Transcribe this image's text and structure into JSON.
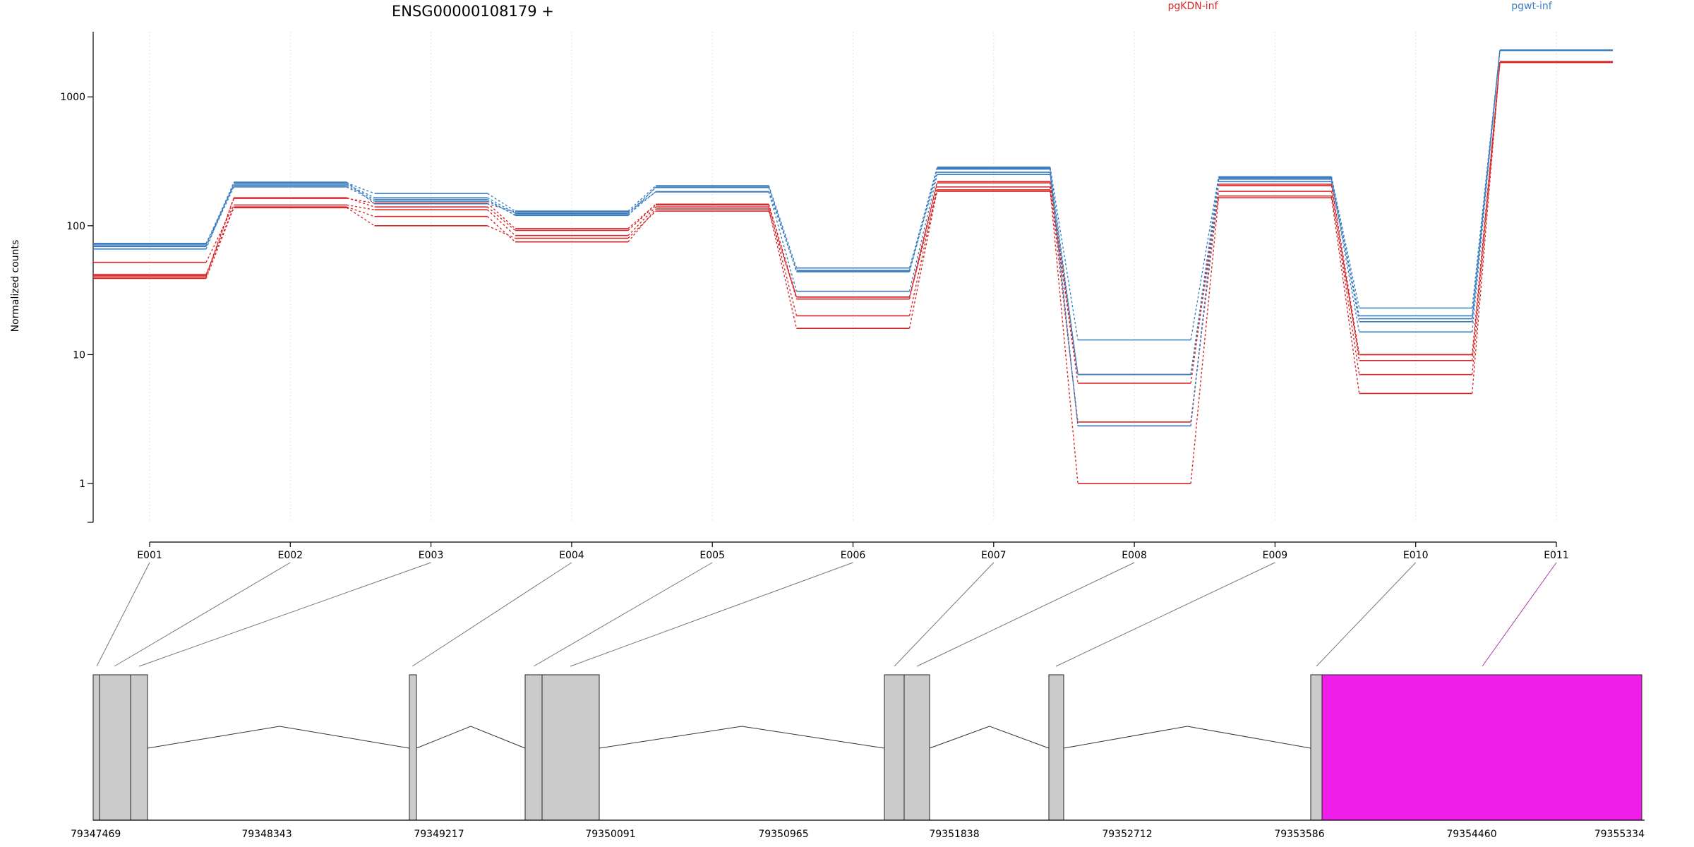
{
  "chart_data": {
    "type": "line",
    "title": "ENSG00000108179 +",
    "ylabel": "Normalized counts",
    "xlabel": "",
    "y_scale": "log",
    "ylim": [
      0.5,
      3200
    ],
    "y_ticks": [
      1,
      10,
      100,
      1000
    ],
    "y_tick_labels": [
      "1",
      "10",
      "100",
      "1000"
    ],
    "grid": "vertical dotted at each exon",
    "legend_placement": "top",
    "categories": [
      "E001",
      "E002",
      "E003",
      "E004",
      "E005",
      "E006",
      "E007",
      "E008",
      "E009",
      "E010",
      "E011"
    ],
    "series": [
      {
        "name": "pgKDN-inf",
        "color": "#d62728",
        "replicates": [
          [
            40,
            163,
            150,
            95,
            147,
            28,
            220,
            7,
            210,
            10,
            1850
          ],
          [
            41,
            165,
            140,
            92,
            145,
            27,
            215,
            6,
            205,
            9,
            1870
          ],
          [
            52,
            145,
            133,
            84,
            140,
            20,
            200,
            3,
            185,
            7,
            1860
          ],
          [
            42,
            140,
            118,
            75,
            135,
            16,
            190,
            1,
            165,
            5,
            1880
          ],
          [
            39,
            138,
            100,
            80,
            130,
            28,
            185,
            7,
            170,
            10,
            1850
          ]
        ]
      },
      {
        "name": "pgwt-inf",
        "color": "#3a7ebf",
        "replicates": [
          [
            72,
            215,
            178,
            130,
            205,
            47,
            285,
            13,
            240,
            23,
            2300
          ],
          [
            70,
            210,
            165,
            125,
            198,
            44,
            280,
            7,
            235,
            20,
            2300
          ],
          [
            69,
            200,
            155,
            122,
            184,
            45,
            260,
            2.8,
            220,
            19,
            2300
          ],
          [
            66,
            218,
            148,
            128,
            183,
            31,
            250,
            7,
            230,
            15,
            2310
          ],
          [
            73,
            205,
            160,
            120,
            200,
            44,
            275,
            2.8,
            238,
            18,
            2290
          ]
        ]
      }
    ],
    "gene_model": {
      "coordinate_labels": [
        "79347469",
        "79348343",
        "79349217",
        "79350091",
        "79350965",
        "79351838",
        "79352712",
        "79353586",
        "79354460",
        "79355334"
      ],
      "exon_color": "#cccccc",
      "highlight_color": "#f01ee8",
      "highlighted_exon": "E011"
    }
  }
}
